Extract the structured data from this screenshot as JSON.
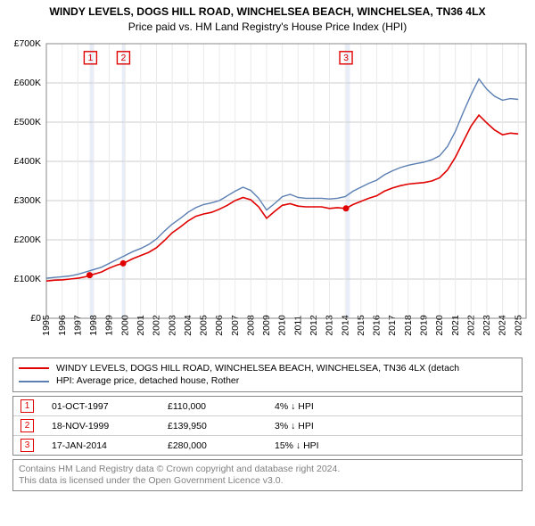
{
  "title": "WINDY LEVELS, DOGS HILL ROAD, WINCHELSEA BEACH, WINCHELSEA, TN36 4LX",
  "subtitle": "Price paid vs. HM Land Registry's House Price Index (HPI)",
  "chart": {
    "type": "line",
    "background_color": "#ffffff",
    "grid_color": "#cccccc",
    "grid_minor_color": "#eaeaea",
    "border_color": "#888888",
    "xlim": [
      1995,
      2025.5
    ],
    "ylim": [
      0,
      700000
    ],
    "ytick_step": 100000,
    "ytick_labels": [
      "£0",
      "£100K",
      "£200K",
      "£300K",
      "£400K",
      "£500K",
      "£600K",
      "£700K"
    ],
    "ytick_fontsize": 10.5,
    "xtick_years": [
      1995,
      1996,
      1997,
      1998,
      1999,
      2000,
      2001,
      2002,
      2003,
      2004,
      2005,
      2006,
      2007,
      2008,
      2009,
      2010,
      2011,
      2012,
      2013,
      2014,
      2015,
      2016,
      2017,
      2018,
      2019,
      2020,
      2021,
      2022,
      2023,
      2024,
      2025
    ],
    "xtick_fontsize": 10.5,
    "xtick_rotation": -90,
    "band_color": "#e8eef7",
    "bands": [
      [
        1997.75,
        1998.0
      ],
      [
        1999.8,
        2000.0
      ],
      [
        2014.05,
        2014.3
      ]
    ],
    "series": [
      {
        "id": "property",
        "legend": "WINDY LEVELS, DOGS HILL ROAD, WINCHELSEA BEACH, WINCHELSEA, TN36 4LX (detach",
        "color": "#e00000",
        "line_width": 1.6,
        "x": [
          1995.0,
          1995.5,
          1996.0,
          1996.5,
          1997.0,
          1997.5,
          1997.75,
          1998.0,
          1998.5,
          1999.0,
          1999.5,
          1999.88,
          2000.0,
          2000.5,
          2001.0,
          2001.5,
          2002.0,
          2002.5,
          2003.0,
          2003.5,
          2004.0,
          2004.5,
          2005.0,
          2005.5,
          2006.0,
          2006.5,
          2007.0,
          2007.5,
          2008.0,
          2008.5,
          2009.0,
          2009.5,
          2010.0,
          2010.5,
          2011.0,
          2011.5,
          2012.0,
          2012.5,
          2013.0,
          2013.5,
          2014.0,
          2014.05,
          2014.5,
          2015.0,
          2015.5,
          2016.0,
          2016.5,
          2017.0,
          2017.5,
          2018.0,
          2018.5,
          2019.0,
          2019.5,
          2020.0,
          2020.5,
          2021.0,
          2021.5,
          2022.0,
          2022.5,
          2023.0,
          2023.5,
          2024.0,
          2024.5,
          2025.0
        ],
        "y": [
          95000,
          97000,
          98000,
          100000,
          102000,
          106000,
          110000,
          112000,
          118000,
          128000,
          136000,
          139950,
          142000,
          152000,
          160000,
          168000,
          180000,
          198000,
          218000,
          232000,
          248000,
          260000,
          266000,
          270000,
          278000,
          288000,
          300000,
          308000,
          302000,
          284000,
          255000,
          272000,
          288000,
          292000,
          286000,
          284000,
          284000,
          284000,
          280000,
          282000,
          280000,
          280000,
          290000,
          298000,
          306000,
          312000,
          324000,
          332000,
          338000,
          342000,
          344000,
          346000,
          350000,
          358000,
          378000,
          410000,
          450000,
          490000,
          518000,
          498000,
          480000,
          468000,
          472000,
          470000
        ]
      },
      {
        "id": "hpi",
        "legend": "HPI: Average price, detached house, Rother",
        "color": "#5b7fb2",
        "line_width": 1.4,
        "x": [
          1995.0,
          1995.5,
          1996.0,
          1996.5,
          1997.0,
          1997.5,
          1998.0,
          1998.5,
          1999.0,
          1999.5,
          2000.0,
          2000.5,
          2001.0,
          2001.5,
          2002.0,
          2002.5,
          2003.0,
          2003.5,
          2004.0,
          2004.5,
          2005.0,
          2005.5,
          2006.0,
          2006.5,
          2007.0,
          2007.5,
          2008.0,
          2008.5,
          2009.0,
          2009.5,
          2010.0,
          2010.5,
          2011.0,
          2011.5,
          2012.0,
          2012.5,
          2013.0,
          2013.5,
          2014.0,
          2014.5,
          2015.0,
          2015.5,
          2016.0,
          2016.5,
          2017.0,
          2017.5,
          2018.0,
          2018.5,
          2019.0,
          2019.5,
          2020.0,
          2020.5,
          2021.0,
          2021.5,
          2022.0,
          2022.5,
          2023.0,
          2023.5,
          2024.0,
          2024.5,
          2025.0
        ],
        "y": [
          102000,
          104000,
          106000,
          108000,
          112000,
          118000,
          124000,
          130000,
          140000,
          150000,
          160000,
          170000,
          178000,
          188000,
          202000,
          222000,
          240000,
          254000,
          270000,
          282000,
          290000,
          294000,
          300000,
          312000,
          324000,
          334000,
          326000,
          306000,
          276000,
          292000,
          310000,
          316000,
          308000,
          306000,
          306000,
          306000,
          304000,
          306000,
          310000,
          324000,
          334000,
          344000,
          352000,
          366000,
          376000,
          384000,
          390000,
          394000,
          398000,
          404000,
          414000,
          438000,
          476000,
          524000,
          570000,
          610000,
          584000,
          566000,
          556000,
          560000,
          558000
        ]
      }
    ],
    "marker_color": "#e00000",
    "marker_box_size": 14,
    "marker_fontsize": 10.5,
    "point_markers": [
      {
        "n": 1,
        "x": 1997.75,
        "y": 110000,
        "box_x": 1997.8,
        "box_y": 680000
      },
      {
        "n": 2,
        "x": 1999.88,
        "y": 139950,
        "box_x": 1999.9,
        "box_y": 680000
      },
      {
        "n": 3,
        "x": 2014.05,
        "y": 280000,
        "box_x": 2014.05,
        "box_y": 680000
      }
    ]
  },
  "legend": {
    "rows": [
      {
        "color": "#e00000",
        "label": "WINDY LEVELS, DOGS HILL ROAD, WINCHELSEA BEACH, WINCHELSEA, TN36 4LX (detach"
      },
      {
        "color": "#5b7fb2",
        "label": "HPI: Average price, detached house, Rother"
      }
    ]
  },
  "transactions": {
    "rows": [
      {
        "n": "1",
        "date": "01-OCT-1997",
        "price": "£110,000",
        "ratio": "4% ↓ HPI"
      },
      {
        "n": "2",
        "date": "18-NOV-1999",
        "price": "£139,950",
        "ratio": "3% ↓ HPI"
      },
      {
        "n": "3",
        "date": "17-JAN-2014",
        "price": "£280,000",
        "ratio": "15% ↓ HPI"
      }
    ]
  },
  "credit": {
    "line1": "Contains HM Land Registry data © Crown copyright and database right 2024.",
    "line2": "This data is licensed under the Open Government Licence v3.0."
  }
}
